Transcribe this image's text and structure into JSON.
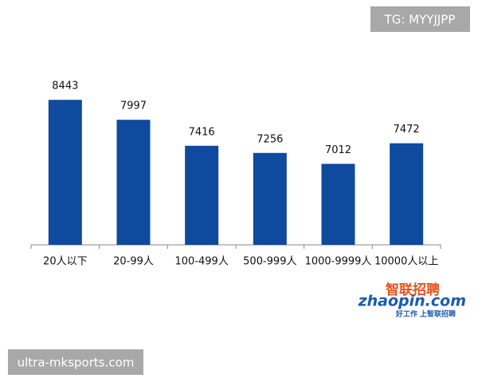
{
  "chart_data": {
    "type": "bar",
    "categories": [
      "20人以下",
      "20-99人",
      "100-499人",
      "500-999人",
      "1000-9999人",
      "10000人以上"
    ],
    "values": [
      8443,
      7997,
      7416,
      7256,
      7012,
      7472
    ],
    "color": "#0e4a9e",
    "ylim": [
      5200,
      9000
    ]
  },
  "watermarks": {
    "top_right": "TG: MYYJJPP",
    "bottom_left": "ultra-mksports.com"
  },
  "logo": {
    "brand": "智联招聘",
    "site": "zhaopin.com",
    "slogan": "好工作 上智联招聘"
  }
}
